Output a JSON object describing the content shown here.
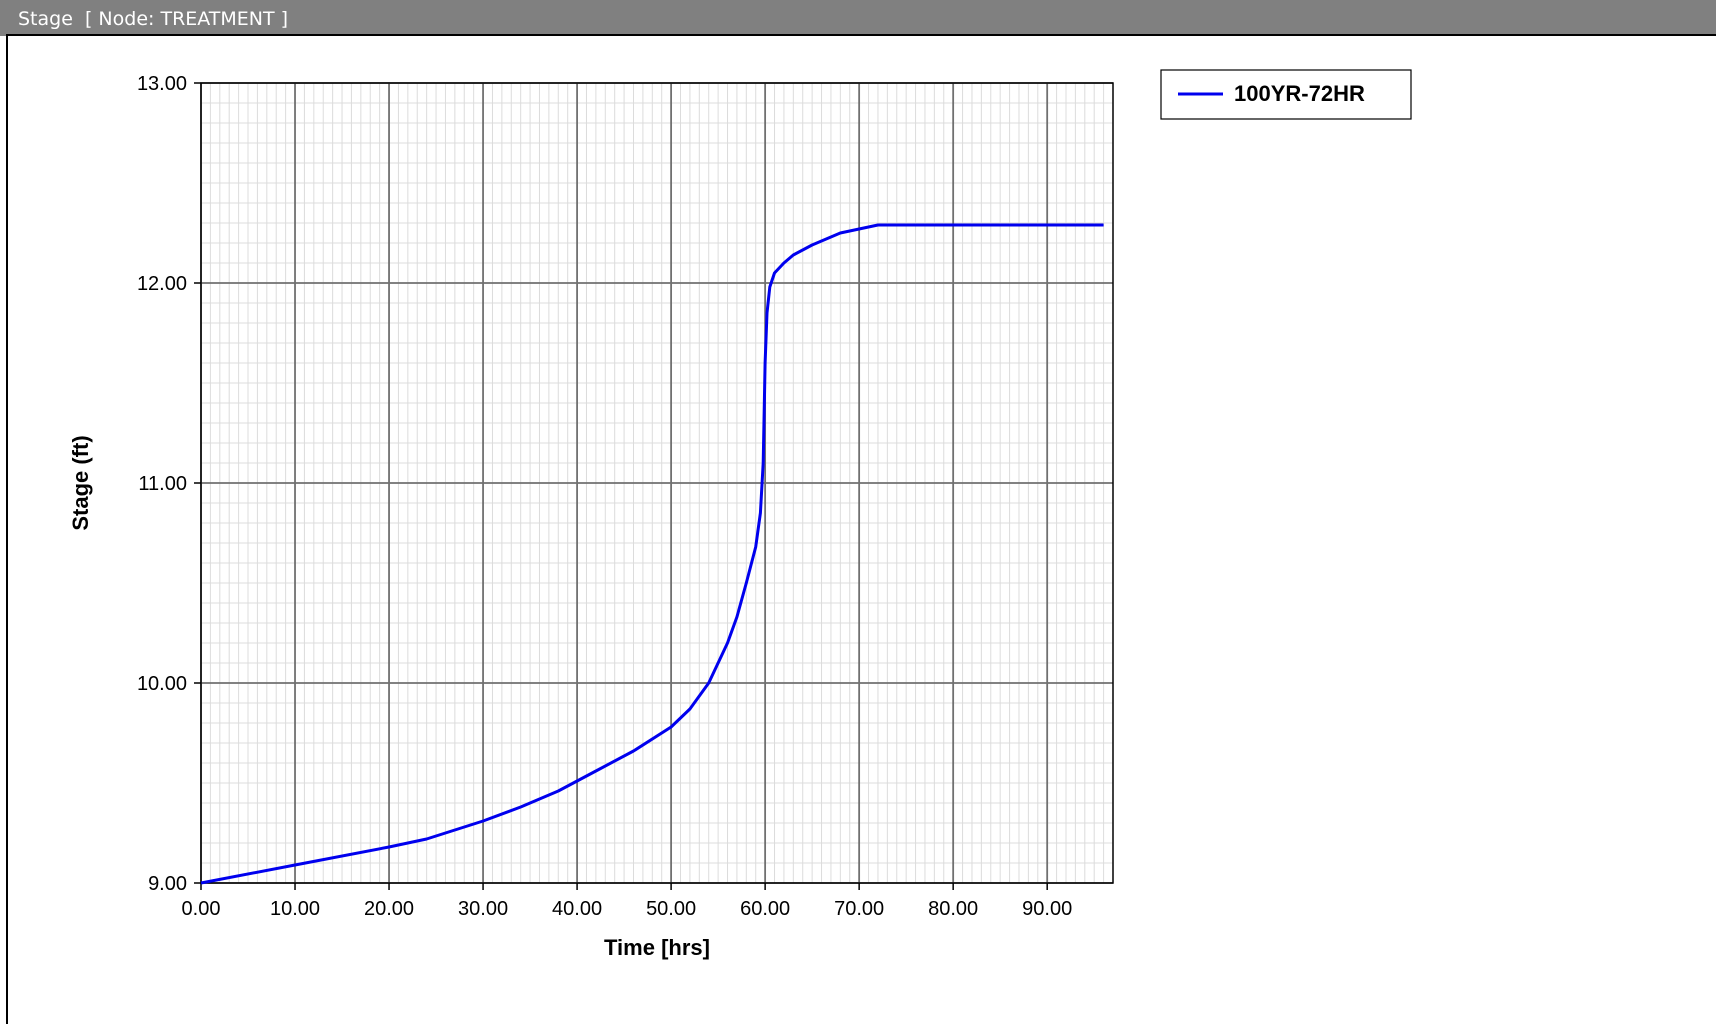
{
  "window": {
    "title": "Stage  [ Node: TREATMENT ]"
  },
  "chart_data": {
    "type": "line",
    "title": "",
    "xlabel": "Time [hrs]",
    "ylabel": "Stage (ft)",
    "xlim": [
      0,
      97
    ],
    "ylim": [
      9,
      13
    ],
    "x_ticks": [
      "0.00",
      "10.00",
      "20.00",
      "30.00",
      "40.00",
      "50.00",
      "60.00",
      "70.00",
      "80.00",
      "90.00"
    ],
    "y_ticks": [
      "9.00",
      "10.00",
      "11.00",
      "12.00",
      "13.00"
    ],
    "grid": true,
    "legend_position": "top-right, outside plot",
    "series": [
      {
        "name": "100YR-72HR",
        "color": "#0000ee",
        "x": [
          0,
          10,
          20,
          24,
          30,
          34,
          38,
          42,
          46,
          50,
          52,
          54,
          56,
          57,
          58,
          59,
          59.5,
          59.8,
          60,
          60.2,
          60.5,
          61,
          62,
          63,
          65,
          68,
          72,
          80,
          90,
          96
        ],
        "y": [
          9.0,
          9.09,
          9.18,
          9.22,
          9.31,
          9.38,
          9.46,
          9.56,
          9.66,
          9.78,
          9.87,
          10.0,
          10.2,
          10.33,
          10.5,
          10.68,
          10.85,
          11.1,
          11.6,
          11.85,
          11.98,
          12.05,
          12.1,
          12.14,
          12.19,
          12.25,
          12.29,
          12.29,
          12.29,
          12.29
        ]
      }
    ]
  }
}
